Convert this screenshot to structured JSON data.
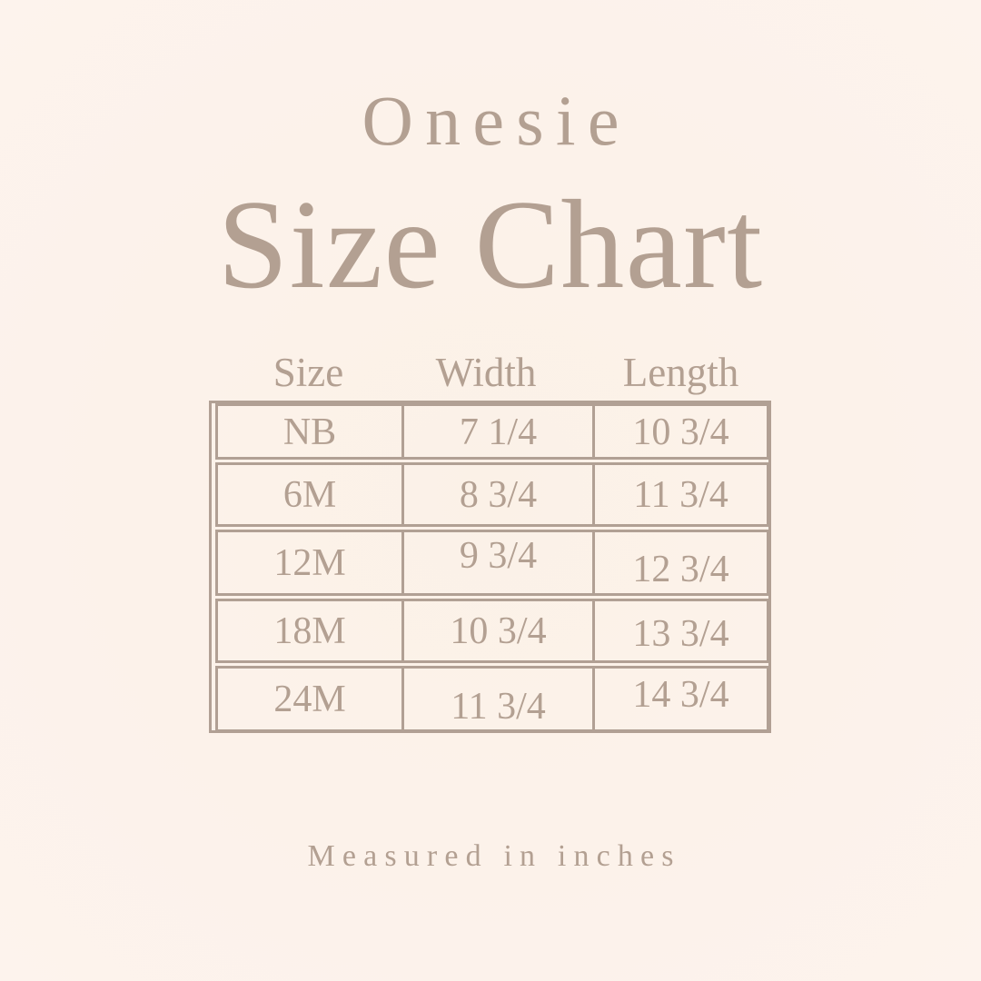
{
  "chart_data": {
    "type": "table",
    "product": "Onesie",
    "title": "Size Chart",
    "columns": [
      "Size",
      "Width",
      "Length"
    ],
    "rows": [
      [
        "NB",
        "7 1/4",
        "10 3/4"
      ],
      [
        "6M",
        "8 3/4",
        "11 3/4"
      ],
      [
        "12M",
        "9 3/4",
        "12 3/4"
      ],
      [
        "18M",
        "10 3/4",
        "13 3/4"
      ],
      [
        "24M",
        "11 3/4",
        "14 3/4"
      ]
    ],
    "note": "Measured in inches",
    "units": "inches"
  },
  "style": {
    "background_color": "#fcf2ea",
    "text_color": "#b3a092",
    "border_color": "#b1a094"
  }
}
